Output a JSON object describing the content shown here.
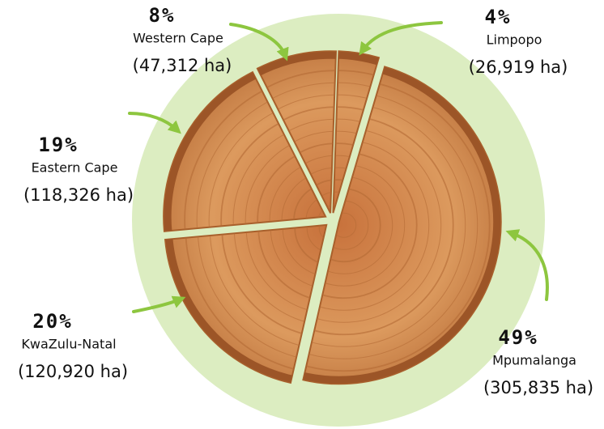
{
  "chart_data": {
    "type": "pie",
    "categories": [
      "Limpopo",
      "Mpumalanga",
      "KwaZulu-Natal",
      "Eastern Cape",
      "Western Cape"
    ],
    "values": [
      4,
      49,
      20,
      19,
      8
    ],
    "value_labels": [
      "4%",
      "49%",
      "20%",
      "19%",
      "8%"
    ],
    "area_labels": [
      "(26,919 ha)",
      "(305,835 ha)",
      "(120,920 ha)",
      "(118,326 ha)",
      "(47,312 ha)"
    ],
    "color": "#d28a4f"
  }
}
